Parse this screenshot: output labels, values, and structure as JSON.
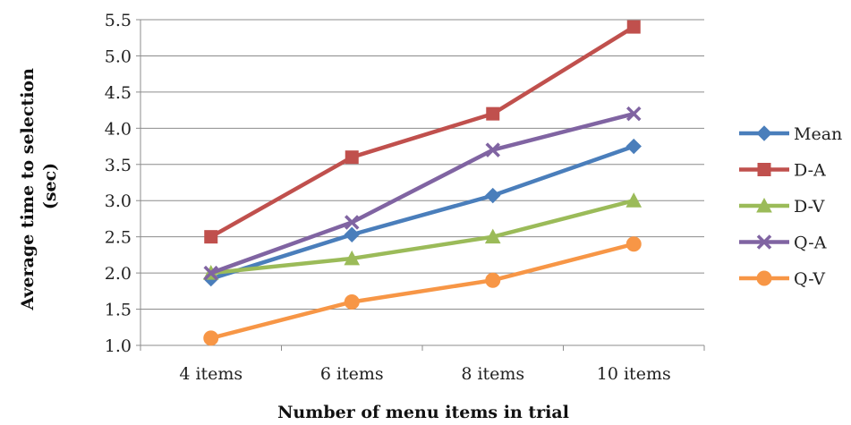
{
  "chart_data": {
    "type": "line",
    "categories": [
      "4 items",
      "6 items",
      "8 items",
      "10 items"
    ],
    "series": [
      {
        "name": "Mean",
        "values": [
          1.92,
          2.53,
          3.07,
          3.75
        ],
        "color": "#4a7ebb",
        "marker": "diamond"
      },
      {
        "name": "D-A",
        "values": [
          2.5,
          3.6,
          4.2,
          5.4
        ],
        "color": "#c0504d",
        "marker": "square"
      },
      {
        "name": "D-V",
        "values": [
          2.0,
          2.2,
          2.5,
          3.0
        ],
        "color": "#9bbb59",
        "marker": "triangle"
      },
      {
        "name": "Q-A",
        "values": [
          2.0,
          2.7,
          3.7,
          4.2
        ],
        "color": "#8064a2",
        "marker": "x"
      },
      {
        "name": "Q-V",
        "values": [
          1.1,
          1.6,
          1.9,
          2.4
        ],
        "color": "#f79646",
        "marker": "circle"
      }
    ],
    "xlabel": "Number of menu items in trial",
    "ylabel_lines": [
      "Average time to selection",
      "(sec)"
    ],
    "ylim": [
      1.0,
      5.5
    ],
    "yticks": [
      "1.0",
      "1.5",
      "2.0",
      "2.5",
      "3.0",
      "3.5",
      "4.0",
      "4.5",
      "5.0",
      "5.5"
    ],
    "grid": true,
    "legend_position": "right"
  }
}
